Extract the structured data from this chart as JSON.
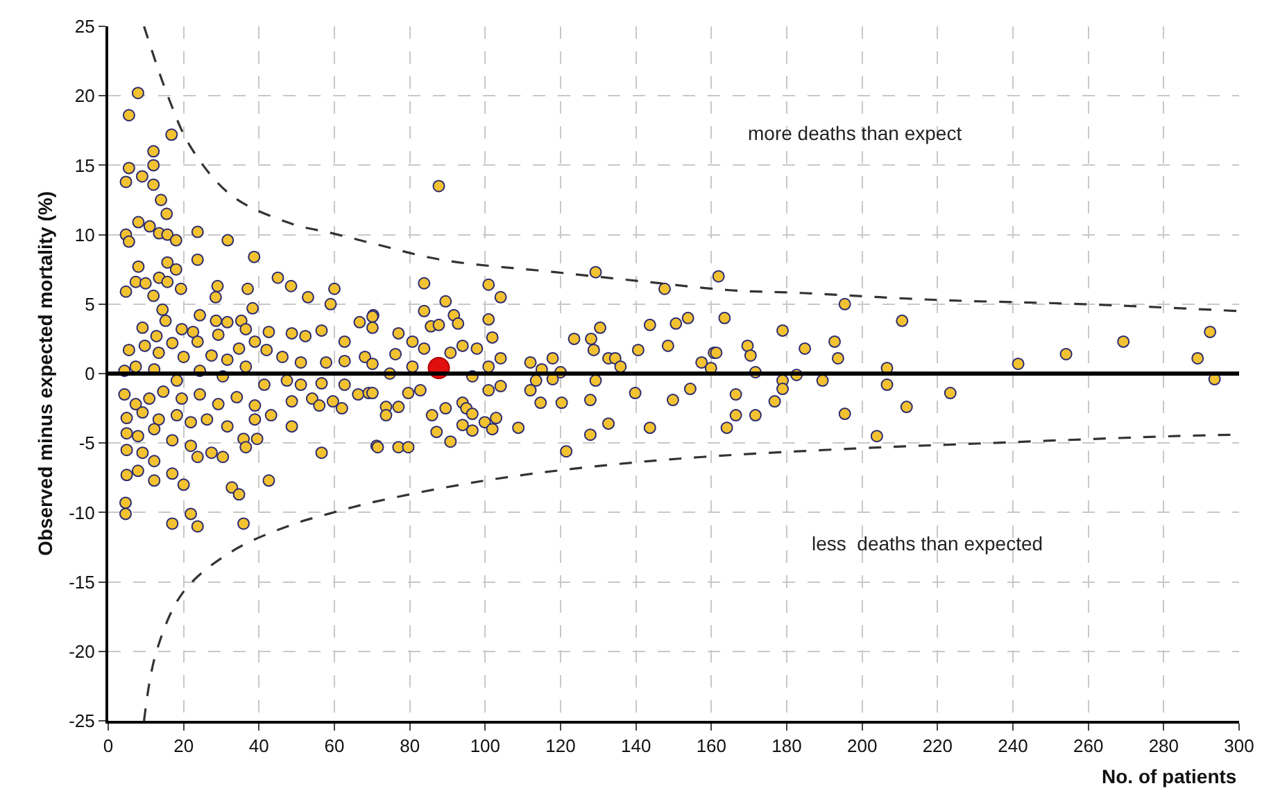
{
  "chart_data": {
    "type": "scatter",
    "xlabel": "No. of patients",
    "ylabel": "Observed minus expected mortality (%)",
    "xlim": [
      0,
      300
    ],
    "xticks": [
      0,
      20,
      40,
      60,
      80,
      100,
      120,
      140,
      160,
      180,
      200,
      220,
      240,
      260,
      280,
      300
    ],
    "ylim": [
      -25,
      25
    ],
    "yticks": [
      -25,
      -20,
      -15,
      -10,
      -5,
      0,
      5,
      10,
      15,
      20,
      25
    ],
    "grid": true,
    "marker": "circle",
    "ref_lines": [
      {
        "axis": "y",
        "value": 0,
        "color": "#000000"
      }
    ],
    "annotations": [
      "more deaths than expect",
      "less  deaths than expected"
    ],
    "series": [
      {
        "color": "#f2c230",
        "x": [
          16.8,
          7.9,
          5.5,
          12,
          5.5,
          4.7,
          9,
          12,
          12,
          14,
          15.5,
          8,
          11,
          4.7,
          5.5,
          13.5,
          15.7,
          18,
          23.7,
          31.7,
          23.7,
          38.7,
          8,
          15.7,
          18,
          4.7,
          7.3,
          9.9,
          13.5,
          15.7,
          19.3,
          12,
          29,
          28.5,
          37,
          45,
          48.5,
          53,
          60,
          59,
          14.4,
          15.2,
          24.3,
          28.6,
          31.6,
          35.3,
          38.3,
          9.1,
          12.8,
          19.5,
          22.5,
          29.2,
          36.5,
          42.6,
          48.7,
          52.3,
          56.6,
          62.7,
          66.7,
          70.3,
          5.5,
          9.7,
          13.4,
          17,
          20,
          23.7,
          27.4,
          31.6,
          34.7,
          38.9,
          42,
          46.2,
          51.1,
          57.8,
          62.7,
          68.1,
          4.3,
          7.3,
          12.2,
          18.2,
          24.3,
          30.4,
          36.5,
          41.4,
          47.4,
          51.1,
          56.6,
          62.7,
          4.3,
          7.3,
          10.9,
          14.6,
          19.5,
          24.3,
          29.2,
          34.1,
          38.9,
          43.2,
          48.7,
          54.1,
          56,
          59.6,
          66.3,
          69.1,
          4.9,
          9.1,
          13.4,
          18.2,
          21.9,
          26.2,
          31.6,
          38.9,
          48.7,
          62,
          4.9,
          7.9,
          12.2,
          17,
          21.9,
          35.9,
          39.5,
          4.9,
          9.1,
          12.2,
          23.7,
          27.4,
          30.4,
          36.5,
          56.6,
          71.2,
          4.9,
          7.9,
          12.2,
          17,
          20,
          32.8,
          34.7,
          42.6,
          4.6,
          4.6,
          17,
          21.9,
          23.7,
          35.9,
          87.7,
          83.8,
          100.9,
          104.1,
          89.5,
          83.8,
          91.7,
          92.8,
          85.6,
          87.7,
          100.9,
          77,
          80.7,
          76.2,
          83.8,
          94,
          97.8,
          101.9,
          90.8,
          104.1,
          70.1,
          70.1,
          70.1,
          74.7,
          80.7,
          100.9,
          96.6,
          112,
          112,
          117.9,
          115,
          113.5,
          120,
          117.9,
          123.6,
          128.1,
          128.8,
          130.5,
          129.3,
          129.3,
          132.7,
          134.5,
          135.9,
          140.6,
          143.7,
          148.5,
          150.6,
          153.8,
          147.6,
          161.9,
          157.4,
          160.7,
          159.9,
          163.5,
          70.1,
          73.7,
          73.7,
          77,
          79.6,
          82.8,
          85.9,
          87.1,
          89.5,
          94,
          95,
          96.6,
          94,
          96.6,
          99.9,
          101.9,
          102.9,
          104.1,
          100.9,
          90.8,
          108.8,
          114.7,
          120.3,
          121.5,
          127.9,
          127.9,
          132.7,
          139.8,
          143.7,
          149.8,
          154.4,
          164.1,
          71.5,
          77,
          79.6,
          161.3,
          178.9,
          169.6,
          170.4,
          171.7,
          166.5,
          166.5,
          171.7,
          176.8,
          178.9,
          178.9,
          182.6,
          184.8,
          189.5,
          192.7,
          193.6,
          195.4,
          195.4,
          203.9,
          206.6,
          206.6,
          210.6,
          211.8,
          223.4,
          241.4,
          254.1,
          269.3,
          289,
          292.3,
          293.5
        ],
        "values": [
          17.2,
          20.2,
          18.6,
          16,
          14.8,
          13.8,
          14.2,
          15,
          13.6,
          12.5,
          11.5,
          10.9,
          10.6,
          10,
          9.5,
          10.1,
          10,
          9.6,
          10.2,
          9.6,
          8.2,
          8.4,
          7.7,
          8,
          7.5,
          5.9,
          6.6,
          6.5,
          6.9,
          6.6,
          6.1,
          5.6,
          6.3,
          5.5,
          6.1,
          6.9,
          6.3,
          5.5,
          6.1,
          5,
          4.6,
          3.8,
          4.2,
          3.8,
          3.7,
          3.8,
          4.7,
          3.3,
          2.7,
          3.2,
          3,
          2.8,
          3.2,
          3,
          2.9,
          2.7,
          3.1,
          2.3,
          3.7,
          4.2,
          1.7,
          2,
          1.5,
          2.2,
          1.2,
          2.3,
          1.3,
          1,
          1.8,
          2.3,
          1.7,
          1.2,
          0.8,
          0.8,
          0.9,
          1.2,
          0.2,
          0.5,
          0.3,
          -0.5,
          0.2,
          -0.2,
          0.5,
          -0.8,
          -0.5,
          -0.8,
          -0.7,
          -0.8,
          -1.5,
          -2.2,
          -1.8,
          -1.3,
          -1.8,
          -1.5,
          -2.2,
          -1.7,
          -2.3,
          -3,
          -2,
          -1.8,
          -2.3,
          -2,
          -1.5,
          -1.4,
          -3.2,
          -2.8,
          -3.3,
          -3,
          -3.5,
          -3.3,
          -3.8,
          -3.3,
          -3.8,
          -2.5,
          -4.3,
          -4.5,
          -4,
          -4.8,
          -5.2,
          -4.7,
          -4.7,
          -5.5,
          -5.7,
          -6.3,
          -6,
          -5.7,
          -6,
          -5.3,
          -5.7,
          -5.2,
          -7.3,
          -7,
          -7.7,
          -7.2,
          -8,
          -8.2,
          -8.7,
          -7.7,
          -9.3,
          -10.1,
          -10.8,
          -10.1,
          -11,
          -10.8,
          13.5,
          6.5,
          6.4,
          5.5,
          5.2,
          4.5,
          4.2,
          3.6,
          3.4,
          3.5,
          3.9,
          2.9,
          2.3,
          1.4,
          1.8,
          2,
          1.8,
          2.6,
          1.5,
          1.1,
          4.1,
          3.3,
          0.7,
          0,
          0.5,
          0.5,
          -0.2,
          0.8,
          -1.2,
          1.1,
          0.3,
          -0.5,
          0.1,
          -0.4,
          2.5,
          2.5,
          1.7,
          3.3,
          7.3,
          -0.5,
          1.1,
          1.1,
          0.5,
          1.7,
          3.5,
          2,
          3.6,
          4,
          6.1,
          7,
          0.8,
          1.5,
          0.4,
          4,
          -1.4,
          -2.4,
          -3,
          -2.4,
          -1.4,
          -1.2,
          -3,
          -4.2,
          -2.5,
          -2.1,
          -2.5,
          -2.9,
          -3.7,
          -4.1,
          -3.5,
          -4,
          -3.2,
          -0.9,
          -1.2,
          -4.9,
          -3.9,
          -2.1,
          -2.1,
          -5.6,
          -1.9,
          -4.4,
          -3.6,
          -1.4,
          -3.9,
          -1.9,
          -1.1,
          -3.9,
          -5.3,
          -5.3,
          -5.3,
          1.5,
          3.1,
          2,
          1.3,
          0.1,
          -1.5,
          -3,
          -3,
          -2,
          -0.5,
          -1.1,
          -0.1,
          1.8,
          -0.5,
          2.3,
          1.1,
          5,
          -2.9,
          -4.5,
          0.4,
          -0.8,
          3.8,
          -2.4,
          -1.4,
          0.7,
          1.4,
          2.3,
          1.1,
          3,
          -0.4
        ]
      },
      {
        "color": "#e01010",
        "x": [
          87.7
        ],
        "values": [
          0.4
        ]
      },
      {
        "type": "line",
        "color": "#333333",
        "marker": "none",
        "line_style": "dashed",
        "x": [
          9.5,
          15.8,
          21.9,
          32.8,
          48.5,
          59.5,
          71.2,
          88.3,
          118.6,
          143,
          165,
          184,
          220,
          258.8,
          300
        ],
        "values": [
          25,
          20,
          16.3,
          12.8,
          10.8,
          10.1,
          9.3,
          8.2,
          7.3,
          6.6,
          6,
          5.8,
          5.3,
          5,
          4.5
        ]
      },
      {
        "type": "line",
        "color": "#333333",
        "marker": "none",
        "line_style": "dashed",
        "x": [
          9.5,
          12.8,
          20,
          32.8,
          48.5,
          58.4,
          71.2,
          100,
          128.5,
          157.7,
          197.8,
          234,
          283,
          300
        ],
        "values": [
          -25,
          -20,
          -15.7,
          -12.8,
          -10.9,
          -10.1,
          -9.2,
          -7.7,
          -6.7,
          -6,
          -5.4,
          -5,
          -4.5,
          -4.4
        ]
      }
    ]
  }
}
